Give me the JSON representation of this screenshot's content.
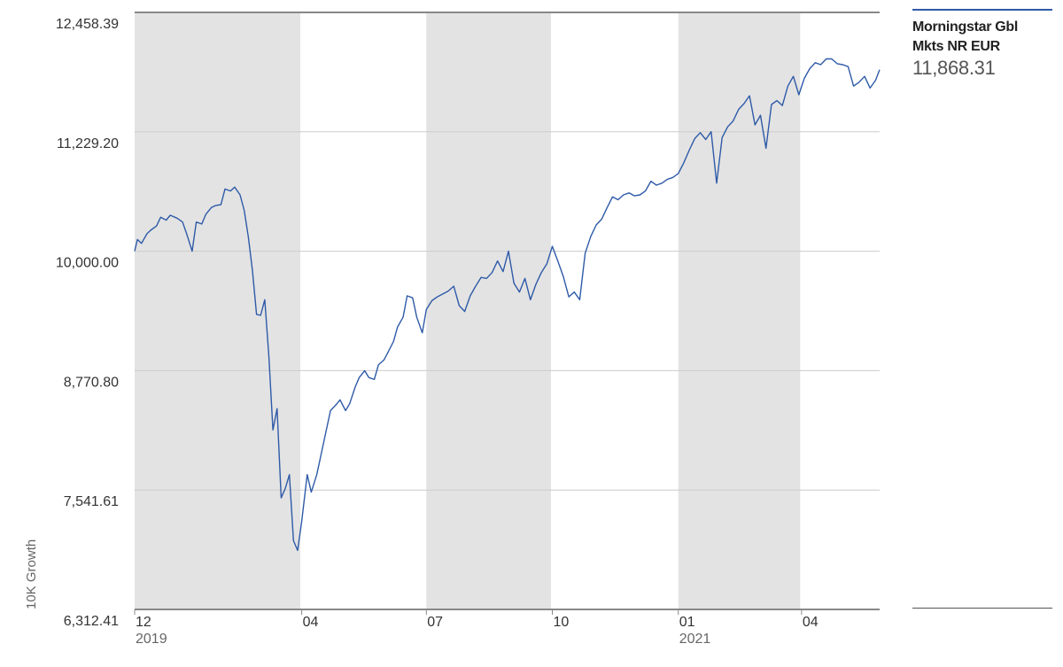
{
  "chart_data": {
    "type": "line",
    "ylabel": "10K Growth",
    "ylim": [
      6312.41,
      12458.39
    ],
    "y_ticks": [
      "12,458.39",
      "11,229.20",
      "10,000.00",
      "8,770.80",
      "7,541.61",
      "6,312.41"
    ],
    "y_tick_values": [
      12458.39,
      11229.2,
      10000.0,
      8770.8,
      7541.61,
      6312.41
    ],
    "x_ticks": [
      {
        "label": "12",
        "sub": "2019",
        "date": "2019-12"
      },
      {
        "label": "04",
        "sub": "",
        "date": "2020-04"
      },
      {
        "label": "07",
        "sub": "",
        "date": "2020-07"
      },
      {
        "label": "10",
        "sub": "",
        "date": "2020-10"
      },
      {
        "label": "01",
        "sub": "2021",
        "date": "2021-01"
      },
      {
        "label": "04",
        "sub": "",
        "date": "2021-04"
      }
    ],
    "shaded_bands": [
      [
        "2019-12-01",
        "2020-03-31"
      ],
      [
        "2020-07-01",
        "2020-09-30"
      ],
      [
        "2021-01-01",
        "2021-03-31"
      ]
    ],
    "grid": true,
    "series": [
      {
        "name": "Morningstar Gbl Mkts NR EUR",
        "color": "#2e5aa8",
        "x": [
          "2019-12-01",
          "2019-12-03",
          "2019-12-06",
          "2019-12-10",
          "2019-12-13",
          "2019-12-17",
          "2019-12-20",
          "2019-12-24",
          "2019-12-27",
          "2020-01-01",
          "2020-01-05",
          "2020-01-08",
          "2020-01-12",
          "2020-01-15",
          "2020-01-19",
          "2020-01-22",
          "2020-01-26",
          "2020-01-29",
          "2020-02-02",
          "2020-02-05",
          "2020-02-09",
          "2020-02-12",
          "2020-02-16",
          "2020-02-19",
          "2020-02-22",
          "2020-02-25",
          "2020-02-28",
          "2020-03-02",
          "2020-03-05",
          "2020-03-08",
          "2020-03-11",
          "2020-03-14",
          "2020-03-17",
          "2020-03-20",
          "2020-03-23",
          "2020-03-26",
          "2020-03-29",
          "2020-04-01",
          "2020-04-05",
          "2020-04-08",
          "2020-04-12",
          "2020-04-15",
          "2020-04-19",
          "2020-04-22",
          "2020-04-26",
          "2020-04-29",
          "2020-05-03",
          "2020-05-06",
          "2020-05-10",
          "2020-05-13",
          "2020-05-17",
          "2020-05-20",
          "2020-05-24",
          "2020-05-27",
          "2020-05-31",
          "2020-06-03",
          "2020-06-07",
          "2020-06-10",
          "2020-06-14",
          "2020-06-17",
          "2020-06-21",
          "2020-06-24",
          "2020-06-28",
          "2020-07-01",
          "2020-07-05",
          "2020-07-09",
          "2020-07-13",
          "2020-07-17",
          "2020-07-21",
          "2020-07-25",
          "2020-07-29",
          "2020-08-02",
          "2020-08-06",
          "2020-08-10",
          "2020-08-14",
          "2020-08-18",
          "2020-08-22",
          "2020-08-26",
          "2020-08-30",
          "2020-09-03",
          "2020-09-07",
          "2020-09-11",
          "2020-09-15",
          "2020-09-19",
          "2020-09-23",
          "2020-09-27",
          "2020-10-01",
          "2020-10-05",
          "2020-10-09",
          "2020-10-13",
          "2020-10-17",
          "2020-10-21",
          "2020-10-25",
          "2020-10-29",
          "2020-11-02",
          "2020-11-06",
          "2020-11-10",
          "2020-11-14",
          "2020-11-18",
          "2020-11-22",
          "2020-11-26",
          "2020-11-30",
          "2020-12-04",
          "2020-12-08",
          "2020-12-12",
          "2020-12-16",
          "2020-12-20",
          "2020-12-24",
          "2020-12-28",
          "2021-01-01",
          "2021-01-05",
          "2021-01-09",
          "2021-01-13",
          "2021-01-17",
          "2021-01-21",
          "2021-01-25",
          "2021-01-29",
          "2021-02-02",
          "2021-02-06",
          "2021-02-10",
          "2021-02-14",
          "2021-02-18",
          "2021-02-22",
          "2021-02-26",
          "2021-03-02",
          "2021-03-06",
          "2021-03-10",
          "2021-03-14",
          "2021-03-18",
          "2021-03-22",
          "2021-03-26",
          "2021-03-30",
          "2021-04-03",
          "2021-04-07",
          "2021-04-11",
          "2021-04-15",
          "2021-04-19",
          "2021-04-23",
          "2021-04-27",
          "2021-05-01",
          "2021-05-05",
          "2021-05-09",
          "2021-05-13",
          "2021-05-17",
          "2021-05-21",
          "2021-05-25",
          "2021-05-28"
        ],
        "y": [
          10000,
          10120,
          10080,
          10180,
          10220,
          10260,
          10350,
          10320,
          10370,
          10340,
          10300,
          10180,
          10000,
          10300,
          10280,
          10380,
          10450,
          10470,
          10480,
          10640,
          10620,
          10660,
          10580,
          10420,
          10150,
          9800,
          9350,
          9340,
          9500,
          8920,
          8160,
          8380,
          7460,
          7560,
          7700,
          7020,
          6920,
          7220,
          7700,
          7520,
          7700,
          7900,
          8160,
          8360,
          8420,
          8470,
          8360,
          8430,
          8600,
          8700,
          8770,
          8700,
          8680,
          8830,
          8880,
          8960,
          9070,
          9220,
          9320,
          9540,
          9520,
          9320,
          9160,
          9400,
          9490,
          9530,
          9560,
          9590,
          9640,
          9440,
          9380,
          9540,
          9640,
          9730,
          9720,
          9780,
          9900,
          9790,
          10000,
          9670,
          9580,
          9720,
          9500,
          9660,
          9780,
          9870,
          10050,
          9900,
          9740,
          9530,
          9580,
          9500,
          9980,
          10150,
          10270,
          10330,
          10450,
          10560,
          10530,
          10580,
          10600,
          10570,
          10580,
          10620,
          10720,
          10680,
          10700,
          10740,
          10760,
          10800,
          10910,
          11040,
          11160,
          11220,
          11150,
          11230,
          10700,
          11170,
          11280,
          11340,
          11460,
          11520,
          11600,
          11300,
          11400,
          11060,
          11510,
          11550,
          11500,
          11700,
          11800,
          11610,
          11780,
          11880,
          11940,
          11920,
          11980,
          11980,
          11930,
          11920,
          11900,
          11700,
          11740,
          11800,
          11680,
          11760,
          11868.31
        ]
      }
    ]
  },
  "legend": {
    "name": "Morningstar Gbl Mkts NR EUR",
    "value": "11,868.31",
    "color": "#2e5aa8"
  }
}
